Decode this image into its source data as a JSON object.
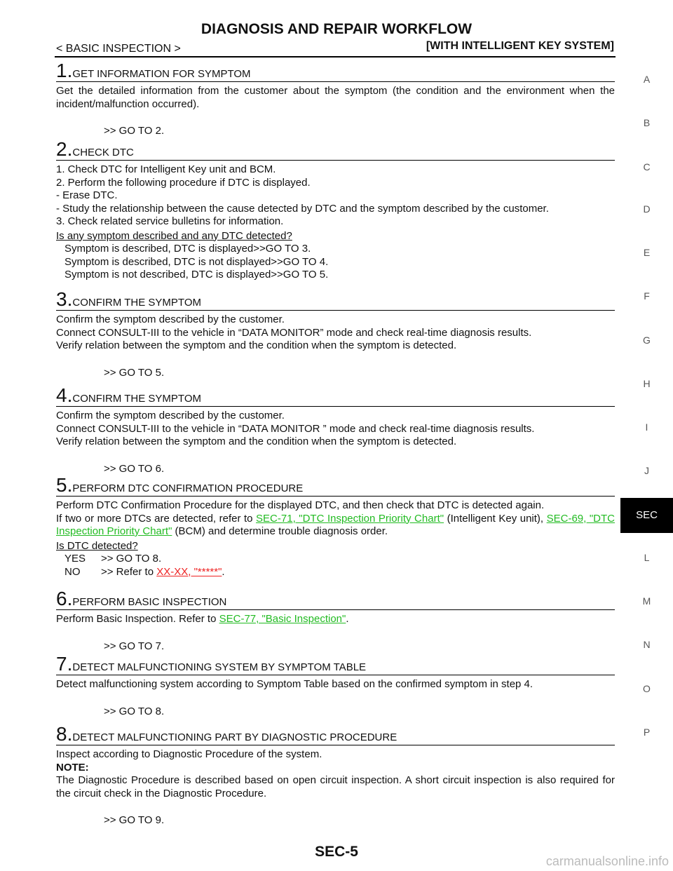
{
  "header": {
    "title": "DIAGNOSIS AND REPAIR WORKFLOW",
    "section": "< BASIC INSPECTION >",
    "system": "[WITH INTELLIGENT KEY SYSTEM]"
  },
  "side_tabs": [
    "A",
    "B",
    "C",
    "D",
    "E",
    "F",
    "G",
    "H",
    "I",
    "J",
    "SEC",
    "L",
    "M",
    "N",
    "O",
    "P"
  ],
  "active_tab": "SEC",
  "steps": [
    {
      "number": "1.",
      "heading": "GET INFORMATION FOR SYMPTOM",
      "lines": [
        {
          "kind": "body",
          "runs": [
            {
              "text": "Get the detailed information from the customer about the symptom (the condition and the environment when the incident/malfunction occurred)."
            }
          ]
        },
        {
          "kind": "goto",
          "runs": [
            {
              "text": ">> GO TO 2."
            }
          ]
        }
      ]
    },
    {
      "number": "2.",
      "heading": "CHECK DTC",
      "lines": [
        {
          "kind": "body",
          "runs": [
            {
              "text": "1. Check DTC for Intelligent Key unit and BCM."
            }
          ]
        },
        {
          "kind": "body",
          "runs": [
            {
              "text": "2. Perform the following procedure if DTC is displayed."
            }
          ]
        },
        {
          "kind": "body",
          "runs": [
            {
              "text": "- Erase DTC."
            }
          ]
        },
        {
          "kind": "body",
          "runs": [
            {
              "text": "- Study the relationship between the cause detected by DTC and the symptom described by the customer."
            }
          ]
        },
        {
          "kind": "body",
          "runs": [
            {
              "text": "3. Check related service bulletins for information."
            }
          ]
        },
        {
          "kind": "question",
          "runs": [
            {
              "text": "Is any symptom described and any DTC detected?"
            }
          ]
        },
        {
          "kind": "answer",
          "runs": [
            {
              "text": "Symptom is described, DTC is displayed>>GO TO 3."
            }
          ]
        },
        {
          "kind": "answer",
          "runs": [
            {
              "text": "Symptom is described, DTC is not displayed>>GO TO 4."
            }
          ]
        },
        {
          "kind": "answer",
          "runs": [
            {
              "text": "Symptom is not described, DTC is displayed>>GO TO 5."
            }
          ]
        }
      ]
    },
    {
      "number": "3.",
      "heading": "CONFIRM THE SYMPTOM",
      "lines": [
        {
          "kind": "body",
          "runs": [
            {
              "text": "Confirm the symptom described by the customer."
            }
          ]
        },
        {
          "kind": "body",
          "runs": [
            {
              "text": "Connect CONSULT-III to the vehicle in “DATA MONITOR” mode and check real-time diagnosis results."
            }
          ]
        },
        {
          "kind": "body",
          "runs": [
            {
              "text": "Verify relation between the symptom and the condition when the symptom is detected."
            }
          ]
        },
        {
          "kind": "goto",
          "runs": [
            {
              "text": ">> GO TO 5."
            }
          ]
        }
      ]
    },
    {
      "number": "4.",
      "heading": "CONFIRM THE SYMPTOM",
      "lines": [
        {
          "kind": "body",
          "runs": [
            {
              "text": "Confirm the symptom described by the customer."
            }
          ]
        },
        {
          "kind": "body",
          "runs": [
            {
              "text": "Connect CONSULT-III to the vehicle in “DATA MONITOR ” mode and check real-time diagnosis results."
            }
          ]
        },
        {
          "kind": "body",
          "runs": [
            {
              "text": "Verify relation between the symptom and the condition when the symptom is detected."
            }
          ]
        },
        {
          "kind": "goto",
          "runs": [
            {
              "text": ">> GO TO 6."
            }
          ]
        }
      ]
    },
    {
      "number": "5.",
      "heading": "PERFORM DTC CONFIRMATION PROCEDURE",
      "lines": [
        {
          "kind": "body",
          "runs": [
            {
              "text": "Perform DTC Confirmation Procedure for the displayed DTC, and then check that DTC is detected again."
            }
          ]
        },
        {
          "kind": "body",
          "runs": [
            {
              "text": "If two or more DTCs are detected, refer to "
            },
            {
              "text": "SEC-71, \"DTC Inspection Priority Chart\"",
              "link": "#22bb22"
            },
            {
              "text": " (Intelligent Key unit), "
            },
            {
              "text": "SEC-69, \"DTC Inspection Priority Chart\"",
              "link": "#22bb22"
            },
            {
              "text": " (BCM) and determine trouble diagnosis order."
            }
          ]
        },
        {
          "kind": "question",
          "runs": [
            {
              "text": "Is DTC detected?"
            }
          ]
        },
        {
          "kind": "choice",
          "runs": [
            {
              "text": "YES"
            },
            {
              "text": ">> GO TO 8."
            }
          ]
        },
        {
          "kind": "choice",
          "runs": [
            {
              "text": "NO"
            },
            {
              "text": ">> Refer to "
            },
            {
              "text": "XX-XX, \"*****\"",
              "link": "#ee2222"
            },
            {
              "text": "."
            }
          ]
        }
      ]
    },
    {
      "number": "6.",
      "heading": "PERFORM BASIC INSPECTION",
      "lines": [
        {
          "kind": "body",
          "runs": [
            {
              "text": "Perform Basic Inspection. Refer to "
            },
            {
              "text": "SEC-77, \"Basic Inspection\"",
              "link": "#22bb22"
            },
            {
              "text": "."
            }
          ]
        },
        {
          "kind": "goto",
          "runs": [
            {
              "text": ">> GO TO 7."
            }
          ]
        }
      ]
    },
    {
      "number": "7.",
      "heading": "DETECT MALFUNCTIONING SYSTEM BY SYMPTOM TABLE",
      "lines": [
        {
          "kind": "body",
          "runs": [
            {
              "text": "Detect malfunctioning system according to Symptom Table based on the confirmed symptom in step 4."
            }
          ]
        },
        {
          "kind": "goto",
          "runs": [
            {
              "text": ">> GO TO 8."
            }
          ]
        }
      ]
    },
    {
      "number": "8.",
      "heading": "DETECT MALFUNCTIONING PART BY DIAGNOSTIC PROCEDURE",
      "lines": [
        {
          "kind": "body",
          "runs": [
            {
              "text": "Inspect according to Diagnostic Procedure of the system."
            }
          ]
        },
        {
          "kind": "note",
          "runs": [
            {
              "text": "NOTE:"
            }
          ]
        },
        {
          "kind": "body",
          "runs": [
            {
              "text": "The Diagnostic Procedure is described based on open circuit inspection. A short circuit inspection is also required for the circuit check in the Diagnostic Procedure."
            }
          ]
        },
        {
          "kind": "goto",
          "runs": [
            {
              "text": ">> GO TO 9."
            }
          ]
        }
      ]
    }
  ],
  "footer": {
    "page": "SEC-5",
    "watermark": "carmanualsonline.info"
  }
}
